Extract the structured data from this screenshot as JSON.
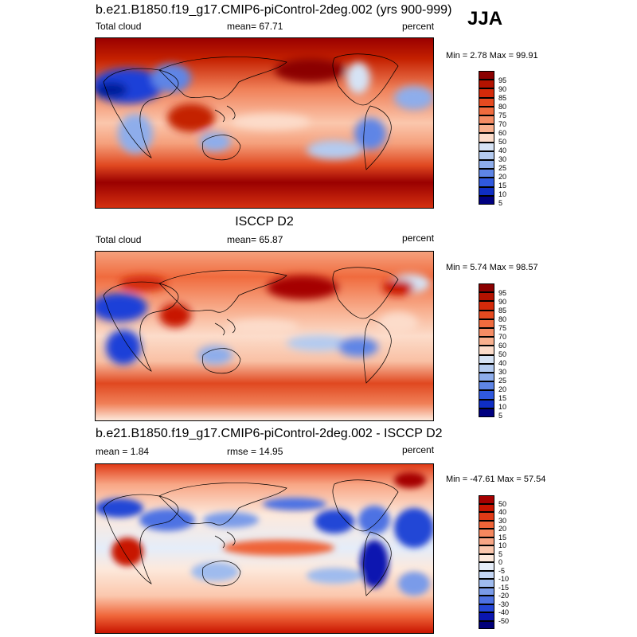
{
  "season": "JJA",
  "panels": [
    {
      "title": "b.e21.B1850.f19_g17.CMIP6-piControl-2deg.002 (yrs 900-999)",
      "left_label": "Total cloud",
      "center_label": "mean=  67.71",
      "right_label": "percent",
      "minmax": "Min =   2.78 Max =  99.91",
      "colorbar": {
        "labels": [
          "95",
          "90",
          "85",
          "80",
          "75",
          "70",
          "60",
          "50",
          "40",
          "30",
          "25",
          "20",
          "15",
          "10",
          "5"
        ],
        "colors": [
          "#8b0000",
          "#b31200",
          "#d42a0a",
          "#e64a20",
          "#f06b3e",
          "#f58c64",
          "#f9b08e",
          "#fcdcca",
          "#d6e3f5",
          "#b4cbf0",
          "#8eadeb",
          "#5e85e6",
          "#3059de",
          "#0f2ec4",
          "#000080"
        ]
      }
    },
    {
      "title": "ISCCP D2",
      "left_label": "Total cloud",
      "center_label": "mean=  65.87",
      "right_label": "percent",
      "minmax": "Min =   5.74 Max =  98.57",
      "colorbar": {
        "labels": [
          "95",
          "90",
          "85",
          "80",
          "75",
          "70",
          "60",
          "50",
          "40",
          "30",
          "25",
          "20",
          "15",
          "10",
          "5"
        ],
        "colors": [
          "#8b0000",
          "#b31200",
          "#d42a0a",
          "#e64a20",
          "#f06b3e",
          "#f58c64",
          "#f9b08e",
          "#fcdcca",
          "#d6e3f5",
          "#b4cbf0",
          "#8eadeb",
          "#5e85e6",
          "#3059de",
          "#0f2ec4",
          "#000080"
        ]
      }
    },
    {
      "title": "b.e21.B1850.f19_g17.CMIP6-piControl-2deg.002 - ISCCP D2",
      "left_label": "mean =   1.84",
      "center_label": "rmse =  14.95",
      "right_label": "percent",
      "minmax": "Min = -47.61 Max =  57.54",
      "colorbar": {
        "labels": [
          "50",
          "40",
          "30",
          "20",
          "15",
          "10",
          "5",
          "0",
          "-5",
          "-10",
          "-15",
          "-20",
          "-30",
          "-40",
          "-50"
        ],
        "colors": [
          "#a50000",
          "#c81400",
          "#e03a16",
          "#ef6438",
          "#f5875e",
          "#f8a685",
          "#fbc7ad",
          "#fde9dc",
          "#e5edf9",
          "#c3d5f3",
          "#9fbbee",
          "#7a9be9",
          "#4e72e3",
          "#2446d6",
          "#0a16b0",
          "#00007a"
        ]
      }
    }
  ]
}
